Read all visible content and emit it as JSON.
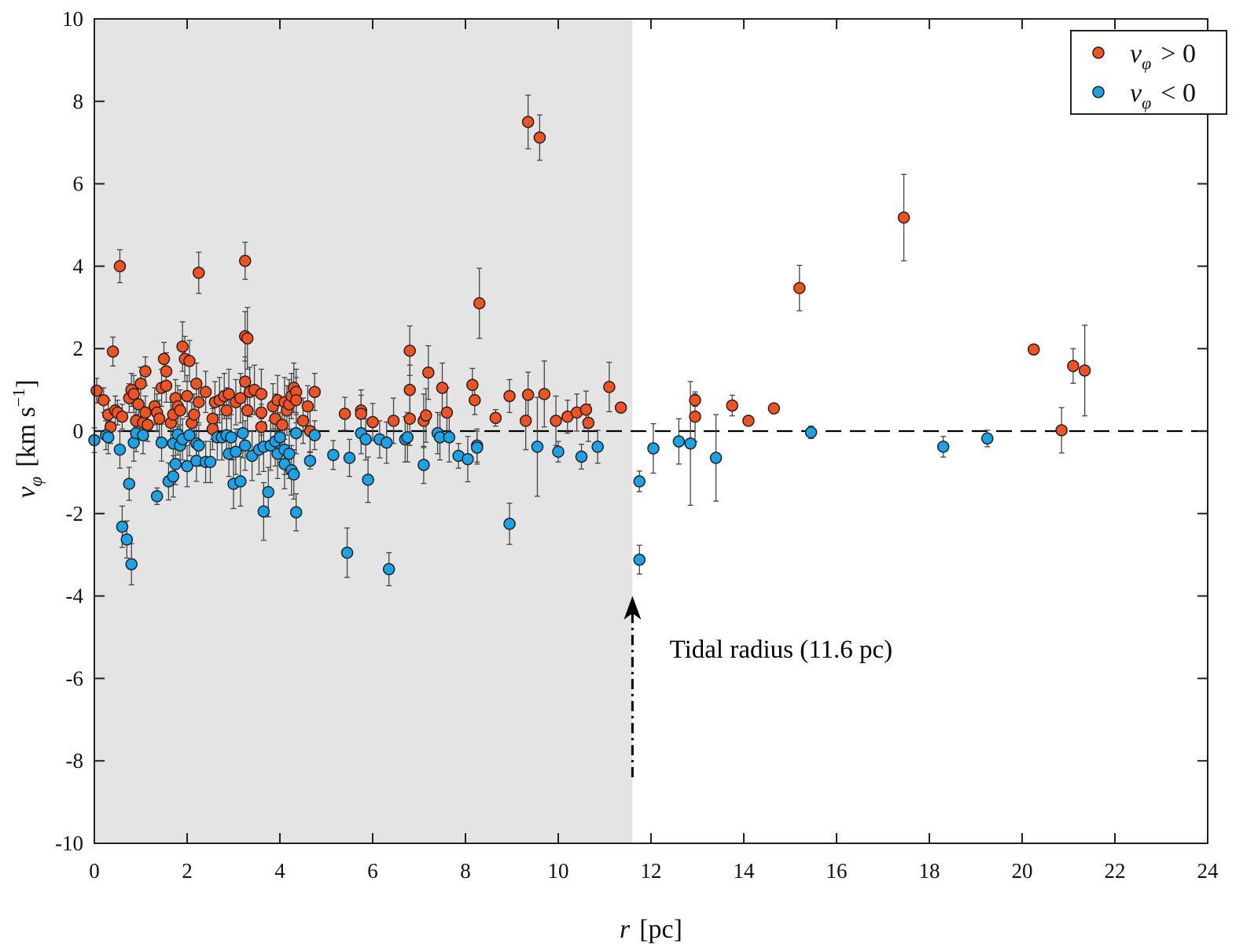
{
  "chart_data": {
    "type": "scatter",
    "title": "",
    "xlabel": "r [pc]",
    "xlabel_parts": {
      "symbol": "r",
      "unit": "[pc]"
    },
    "ylabel": "v_φ [km s^-1]",
    "ylabel_parts": {
      "symbol": "v",
      "subscript": "φ",
      "unit": "[km s",
      "exponent": "−1",
      "close": "]"
    },
    "xlim": [
      0,
      24
    ],
    "ylim": [
      -10,
      10
    ],
    "xticks": [
      0,
      2,
      4,
      6,
      8,
      10,
      12,
      14,
      16,
      18,
      20,
      22,
      24
    ],
    "yticks": [
      -10,
      -8,
      -6,
      -4,
      -2,
      0,
      2,
      4,
      6,
      8,
      10
    ],
    "grid": false,
    "legend_position": "top-right",
    "shaded_region": {
      "x_from": 0,
      "x_to": 11.6,
      "color": "#e4e4e4"
    },
    "reference_line": {
      "y": 0,
      "style": "dashed"
    },
    "annotation": {
      "text": "Tidal radius (11.6 pc)",
      "arrow_x": 11.6,
      "arrow_from_y": -8.4,
      "arrow_to_y": -4.0,
      "text_x": 12.4,
      "text_y": -5.5
    },
    "colors": {
      "positive": "#f2521f",
      "negative": "#1aa3e6",
      "shade": "#e4e4e4",
      "errorbar": "#444444"
    },
    "series": [
      {
        "name": "v_φ > 0",
        "legend_label": {
          "symbol": "v",
          "subscript": "φ",
          "relation": "> 0"
        },
        "color": "#f2521f",
        "points": [
          [
            0.05,
            0.98,
            0.3
          ],
          [
            0.2,
            0.75,
            0.3
          ],
          [
            0.3,
            0.4,
            0.35
          ],
          [
            0.35,
            0.1,
            0.4
          ],
          [
            0.4,
            1.93,
            0.35
          ],
          [
            0.45,
            0.5,
            0.35
          ],
          [
            0.5,
            0.45,
            0.3
          ],
          [
            0.55,
            4.0,
            0.4
          ],
          [
            0.6,
            0.35,
            0.3
          ],
          [
            0.75,
            0.8,
            0.35
          ],
          [
            0.8,
            1.0,
            0.4
          ],
          [
            0.85,
            0.9,
            0.45
          ],
          [
            0.9,
            0.25,
            0.4
          ],
          [
            0.95,
            0.65,
            0.4
          ],
          [
            1.0,
            1.15,
            0.4
          ],
          [
            1.05,
            0.2,
            0.4
          ],
          [
            1.1,
            0.45,
            0.4
          ],
          [
            1.1,
            1.45,
            0.35
          ],
          [
            1.15,
            0.15,
            0.4
          ],
          [
            1.3,
            0.6,
            0.45
          ],
          [
            1.35,
            0.45,
            0.45
          ],
          [
            1.4,
            0.3,
            0.45
          ],
          [
            1.45,
            1.05,
            0.45
          ],
          [
            1.5,
            1.75,
            0.4
          ],
          [
            1.55,
            1.1,
            0.4
          ],
          [
            1.55,
            1.45,
            0.45
          ],
          [
            1.65,
            0.2,
            0.5
          ],
          [
            1.7,
            0.4,
            0.5
          ],
          [
            1.75,
            0.8,
            0.45
          ],
          [
            1.8,
            0.6,
            0.5
          ],
          [
            1.85,
            0.5,
            0.5
          ],
          [
            1.9,
            2.05,
            0.6
          ],
          [
            1.95,
            1.75,
            0.55
          ],
          [
            2.0,
            0.85,
            0.5
          ],
          [
            2.05,
            1.7,
            0.5
          ],
          [
            2.1,
            0.2,
            0.5
          ],
          [
            2.15,
            0.4,
            0.5
          ],
          [
            2.2,
            1.15,
            0.5
          ],
          [
            2.25,
            3.84,
            0.5
          ],
          [
            2.25,
            0.7,
            0.5
          ],
          [
            2.4,
            0.95,
            0.5
          ],
          [
            2.55,
            0.3,
            0.5
          ],
          [
            2.55,
            0.05,
            0.5
          ],
          [
            2.6,
            0.7,
            0.5
          ],
          [
            2.7,
            0.75,
            0.55
          ],
          [
            2.8,
            0.85,
            0.55
          ],
          [
            2.85,
            0.5,
            0.55
          ],
          [
            2.9,
            0.9,
            0.6
          ],
          [
            3.05,
            0.7,
            0.55
          ],
          [
            3.15,
            0.8,
            0.6
          ],
          [
            3.25,
            4.13,
            0.45
          ],
          [
            3.25,
            1.2,
            0.6
          ],
          [
            3.25,
            2.3,
            0.6
          ],
          [
            3.3,
            2.25,
            0.75
          ],
          [
            3.35,
            0.95,
            0.6
          ],
          [
            3.3,
            0.5,
            0.5
          ],
          [
            3.45,
            1.0,
            0.6
          ],
          [
            3.6,
            0.9,
            0.6
          ],
          [
            3.6,
            0.45,
            0.55
          ],
          [
            3.6,
            0.1,
            0.55
          ],
          [
            3.85,
            0.6,
            0.55
          ],
          [
            3.9,
            0.3,
            0.6
          ],
          [
            3.95,
            0.75,
            0.6
          ],
          [
            4.05,
            0.15,
            0.6
          ],
          [
            4.1,
            0.7,
            0.6
          ],
          [
            4.15,
            0.5,
            0.6
          ],
          [
            4.2,
            0.65,
            0.6
          ],
          [
            4.25,
            0.85,
            0.55
          ],
          [
            4.3,
            1.05,
            0.6
          ],
          [
            4.35,
            0.95,
            0.55
          ],
          [
            4.35,
            0.75,
            0.55
          ],
          [
            4.5,
            0.25,
            0.55
          ],
          [
            4.6,
            0.6,
            0.5
          ],
          [
            4.65,
            0.0,
            0.5
          ],
          [
            4.75,
            0.95,
            0.45
          ],
          [
            5.4,
            0.42,
            0.4
          ],
          [
            5.75,
            0.5,
            0.5
          ],
          [
            5.75,
            0.42,
            0.45
          ],
          [
            6.0,
            0.22,
            0.45
          ],
          [
            6.45,
            0.25,
            0.55
          ],
          [
            6.8,
            1.95,
            0.6
          ],
          [
            6.8,
            1.0,
            0.6
          ],
          [
            6.8,
            0.3,
            0.65
          ],
          [
            7.1,
            0.25,
            0.65
          ],
          [
            7.15,
            0.38,
            0.65
          ],
          [
            7.2,
            1.42,
            0.65
          ],
          [
            7.5,
            1.05,
            0.6
          ],
          [
            7.6,
            0.45,
            0.6
          ],
          [
            8.15,
            1.12,
            0.4
          ],
          [
            8.2,
            0.75,
            0.35
          ],
          [
            8.3,
            3.1,
            0.85
          ],
          [
            8.65,
            0.32,
            0.2
          ],
          [
            8.95,
            0.85,
            0.4
          ],
          [
            9.3,
            0.25,
            0.7
          ],
          [
            9.35,
            7.5,
            0.65
          ],
          [
            9.35,
            0.88,
            0.55
          ],
          [
            9.6,
            7.12,
            0.55
          ],
          [
            9.7,
            0.9,
            0.8
          ],
          [
            9.95,
            0.25,
            0.6
          ],
          [
            10.2,
            0.35,
            0.4
          ],
          [
            10.4,
            0.45,
            0.45
          ],
          [
            10.6,
            0.52,
            0.45
          ],
          [
            10.65,
            0.2,
            0.45
          ],
          [
            11.1,
            1.07,
            0.6
          ],
          [
            11.35,
            0.57,
            0.05
          ],
          [
            12.95,
            0.75,
            0.15
          ],
          [
            12.95,
            0.35,
            0.6
          ],
          [
            13.75,
            0.62,
            0.25
          ],
          [
            14.1,
            0.25,
            0.05
          ],
          [
            14.65,
            0.55,
            0.05
          ],
          [
            15.2,
            3.47,
            0.55
          ],
          [
            17.45,
            5.18,
            1.05
          ],
          [
            20.25,
            1.98,
            0.08
          ],
          [
            20.85,
            0.02,
            0.55
          ],
          [
            21.1,
            1.58,
            0.42
          ],
          [
            21.35,
            1.47,
            1.1
          ]
        ]
      },
      {
        "name": "v_φ < 0",
        "legend_label": {
          "symbol": "v",
          "subscript": "φ",
          "relation": "< 0"
        },
        "color": "#1aa3e6",
        "points": [
          [
            0.0,
            -0.22,
            0.3
          ],
          [
            0.25,
            -0.1,
            0.35
          ],
          [
            0.3,
            -0.15,
            0.4
          ],
          [
            0.55,
            -0.45,
            0.45
          ],
          [
            0.6,
            -2.32,
            0.5
          ],
          [
            0.7,
            -2.63,
            0.45
          ],
          [
            0.75,
            -1.28,
            0.4
          ],
          [
            0.8,
            -3.23,
            0.5
          ],
          [
            0.85,
            -0.28,
            0.45
          ],
          [
            0.9,
            -0.05,
            0.45
          ],
          [
            1.05,
            -0.1,
            0.45
          ],
          [
            1.35,
            -1.58,
            0.2
          ],
          [
            1.45,
            -0.28,
            0.45
          ],
          [
            1.6,
            -1.22,
            0.45
          ],
          [
            1.7,
            -0.3,
            0.5
          ],
          [
            1.7,
            -1.1,
            0.5
          ],
          [
            1.75,
            -0.8,
            0.5
          ],
          [
            1.8,
            -0.08,
            0.5
          ],
          [
            1.85,
            -0.35,
            0.5
          ],
          [
            1.9,
            -0.2,
            0.5
          ],
          [
            2.0,
            -0.85,
            0.5
          ],
          [
            2.05,
            -0.1,
            0.5
          ],
          [
            2.2,
            -0.72,
            0.5
          ],
          [
            2.2,
            -0.3,
            0.5
          ],
          [
            2.25,
            -0.35,
            0.5
          ],
          [
            2.4,
            -0.75,
            0.5
          ],
          [
            2.5,
            -0.75,
            0.5
          ],
          [
            2.65,
            -0.15,
            0.55
          ],
          [
            2.75,
            -0.15,
            0.55
          ],
          [
            2.85,
            -0.1,
            0.55
          ],
          [
            2.9,
            -0.55,
            0.55
          ],
          [
            2.95,
            -0.15,
            0.55
          ],
          [
            3.0,
            -1.28,
            0.6
          ],
          [
            3.05,
            -0.5,
            0.55
          ],
          [
            3.15,
            -1.22,
            0.6
          ],
          [
            3.2,
            -0.05,
            0.6
          ],
          [
            3.25,
            -0.35,
            0.6
          ],
          [
            3.4,
            -0.6,
            0.6
          ],
          [
            3.55,
            -0.45,
            0.6
          ],
          [
            3.65,
            -0.38,
            0.6
          ],
          [
            3.65,
            -1.95,
            0.7
          ],
          [
            3.75,
            -1.48,
            0.6
          ],
          [
            3.8,
            -0.35,
            0.6
          ],
          [
            3.9,
            -0.25,
            0.6
          ],
          [
            3.95,
            -0.55,
            0.6
          ],
          [
            4.0,
            -0.15,
            0.6
          ],
          [
            4.1,
            -0.45,
            0.6
          ],
          [
            4.1,
            -0.8,
            0.6
          ],
          [
            4.2,
            -0.55,
            0.6
          ],
          [
            4.25,
            -0.95,
            0.6
          ],
          [
            4.3,
            -1.05,
            0.6
          ],
          [
            4.35,
            -1.97,
            0.45
          ],
          [
            4.35,
            -0.05,
            0.5
          ],
          [
            4.65,
            -0.72,
            0.2
          ],
          [
            4.75,
            -0.1,
            0.35
          ],
          [
            5.15,
            -0.58,
            0.35
          ],
          [
            5.45,
            -2.95,
            0.6
          ],
          [
            5.5,
            -0.65,
            0.45
          ],
          [
            5.75,
            -0.05,
            0.5
          ],
          [
            5.85,
            -0.2,
            0.5
          ],
          [
            5.9,
            -1.18,
            0.55
          ],
          [
            6.15,
            -0.2,
            0.45
          ],
          [
            6.3,
            -0.28,
            0.5
          ],
          [
            6.35,
            -3.35,
            0.4
          ],
          [
            6.7,
            -0.2,
            0.55
          ],
          [
            6.75,
            -0.15,
            0.6
          ],
          [
            7.1,
            -0.82,
            0.45
          ],
          [
            7.4,
            -0.05,
            0.5
          ],
          [
            7.45,
            -0.15,
            0.55
          ],
          [
            7.65,
            -0.15,
            0.6
          ],
          [
            7.85,
            -0.6,
            0.3
          ],
          [
            8.05,
            -0.68,
            0.55
          ],
          [
            8.25,
            -0.35,
            0.4
          ],
          [
            8.25,
            -0.4,
            0.4
          ],
          [
            8.95,
            -2.25,
            0.5
          ],
          [
            9.55,
            -0.38,
            1.2
          ],
          [
            10.0,
            -0.5,
            0.25
          ],
          [
            10.5,
            -0.62,
            0.3
          ],
          [
            10.85,
            -0.38,
            0.4
          ],
          [
            11.75,
            -1.22,
            0.25
          ],
          [
            11.75,
            -3.12,
            0.35
          ],
          [
            12.05,
            -0.42,
            0.6
          ],
          [
            12.6,
            -0.25,
            0.55
          ],
          [
            12.85,
            -0.3,
            1.5
          ],
          [
            13.4,
            -0.65,
            1.05
          ],
          [
            15.45,
            -0.03,
            0.15
          ],
          [
            18.3,
            -0.38,
            0.25
          ],
          [
            19.25,
            -0.18,
            0.2
          ]
        ]
      }
    ]
  }
}
